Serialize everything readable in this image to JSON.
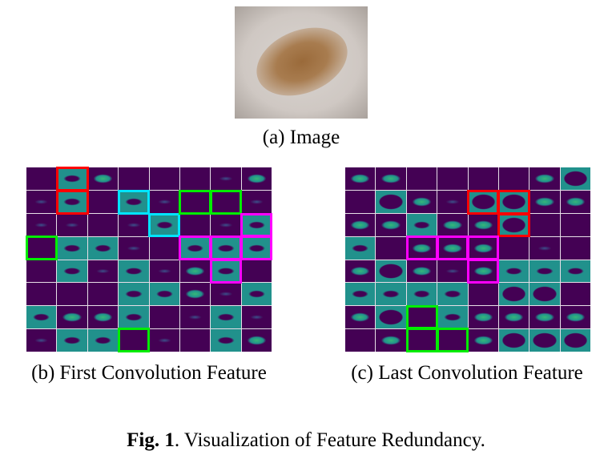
{
  "panel_a": {
    "caption": "(a) Image"
  },
  "panel_b": {
    "caption": "(b) First Convolution Feature",
    "highlights": [
      {
        "color": "#ff0000",
        "cells": [
          [
            0,
            1
          ],
          [
            1,
            1
          ]
        ]
      },
      {
        "color": "#00e5ff",
        "cells": [
          [
            1,
            3
          ],
          [
            2,
            4
          ]
        ]
      },
      {
        "color": "#00ee00",
        "cells": [
          [
            1,
            5
          ],
          [
            1,
            6
          ],
          [
            3,
            0
          ],
          [
            7,
            3
          ]
        ]
      },
      {
        "color": "#ff00ff",
        "cells": [
          [
            2,
            7
          ],
          [
            3,
            5
          ],
          [
            3,
            6
          ],
          [
            3,
            7
          ],
          [
            4,
            6
          ]
        ]
      }
    ]
  },
  "panel_c": {
    "caption": "(c) Last Convolution Feature",
    "highlights": [
      {
        "color": "#ff0000",
        "cells": [
          [
            1,
            4
          ],
          [
            1,
            5
          ],
          [
            2,
            5
          ]
        ]
      },
      {
        "color": "#ff00ff",
        "cells": [
          [
            3,
            2
          ],
          [
            3,
            3
          ],
          [
            3,
            4
          ],
          [
            4,
            4
          ]
        ]
      },
      {
        "color": "#00ee00",
        "cells": [
          [
            6,
            2
          ],
          [
            7,
            2
          ],
          [
            7,
            3
          ]
        ]
      }
    ]
  },
  "figure_caption": {
    "label": "Fig. 1",
    "text": ". Visualization of Feature Redundancy."
  }
}
